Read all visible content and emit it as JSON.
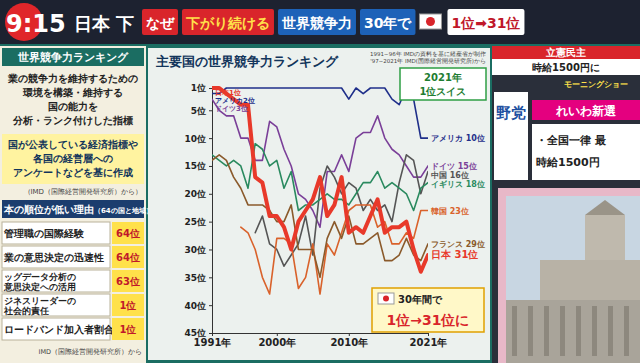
{
  "banner": {
    "clock": "9:15",
    "headline_prefix": "日本 下",
    "tags": [
      "なぜ",
      "下がり続ける",
      "世界競争力",
      "30年で"
    ],
    "result": "1位➡31位"
  },
  "sidebar": {
    "heading": "世界競争力ランキング",
    "description": [
      "業の競争力を維持するための",
      "環境を構築・維持する",
      "国の能力を",
      "分析・ランク付けした指標"
    ],
    "method": [
      "国が公表している経済指標や",
      "各国の経営層への",
      "アンケートなどを基に作成"
    ],
    "method_source": "（IMD（国際経営開発研究所）から）",
    "reasons_heading": "本の順位が低い理由",
    "reasons_note": "（64の国と地域）",
    "reasons": [
      {
        "item": [
          "管理職の国際経験"
        ],
        "rank": "64位"
      },
      {
        "item": [
          "業の意思決定の迅速性"
        ],
        "rank": "64位"
      },
      {
        "item": [
          "ッグデータ分析の",
          "意思決定への活用"
        ],
        "rank": "63位"
      },
      {
        "item": [
          "ジネスリーダーの",
          "社会的責任"
        ],
        "rank": "1位"
      },
      {
        "item": [
          "ロードバンド加入者割合"
        ],
        "rank": "1位"
      }
    ],
    "reasons_source": "IMD（国際経営開発研究所）から"
  },
  "side_panel": {
    "top_party": "立憲民主",
    "top_policy": "時給1500円に",
    "show": "モーニングショー",
    "party": "野党",
    "other_party": "れいわ新選",
    "policy": [
      "・全国一律 最",
      "時給1500円"
    ]
  },
  "chart_data": {
    "type": "line",
    "title": "主要国の世界競争力ランキング",
    "source": [
      "1991~96年 IMDの資料を基に経産省が制作",
      "'97~2021年 IMD(国際経営開発研究所)から"
    ],
    "x": [
      1991,
      1992,
      1993,
      1994,
      1995,
      1996,
      1997,
      1998,
      1999,
      2000,
      2001,
      2002,
      2003,
      2004,
      2005,
      2006,
      2007,
      2008,
      2009,
      2010,
      2011,
      2012,
      2013,
      2014,
      2015,
      2016,
      2017,
      2018,
      2019,
      2020,
      2021
    ],
    "xlim": [
      1991,
      2021
    ],
    "xticks": [
      {
        "value": 1991,
        "label": "1991年"
      },
      {
        "value": 2000,
        "label": "2000年"
      },
      {
        "value": 2010,
        "label": "2010年"
      },
      {
        "value": 2021,
        "label": "2021年"
      }
    ],
    "ylim": [
      1,
      45
    ],
    "yticks": [
      {
        "value": 1,
        "label": "1位"
      },
      {
        "value": 5,
        "label": "5位"
      },
      {
        "value": 10,
        "label": "10位"
      },
      {
        "value": 15,
        "label": "15位"
      },
      {
        "value": 20,
        "label": "20位"
      },
      {
        "value": 25,
        "label": "25位"
      },
      {
        "value": 30,
        "label": "30位"
      },
      {
        "value": 35,
        "label": "35位"
      },
      {
        "value": 40,
        "label": "40位"
      },
      {
        "value": 45,
        "label": "45位"
      }
    ],
    "grid": false,
    "series": [
      {
        "name": "アメリカ",
        "color": "#1f2f8a",
        "line_style": "solid",
        "values": [
          2,
          2,
          1,
          1,
          1,
          1,
          1,
          1,
          1,
          1,
          1,
          1,
          1,
          1,
          1,
          1,
          1,
          1,
          1,
          3,
          1,
          2,
          1,
          1,
          1,
          3,
          4,
          1,
          3,
          10,
          10
        ],
        "value_labels": [
          null,
          null,
          null,
          null,
          null,
          null,
          null,
          null,
          null,
          null,
          null,
          null,
          null,
          null,
          null,
          null,
          null,
          null,
          null,
          null,
          null,
          null,
          null,
          null,
          null,
          null,
          null,
          null,
          null,
          null,
          "10位"
        ]
      },
      {
        "name": "ドイツ",
        "color": "#7a3f98",
        "line_style": "solid",
        "values": [
          3,
          5,
          6,
          6,
          10,
          10,
          14,
          14,
          7,
          8,
          12,
          15,
          20,
          21,
          23,
          26,
          16,
          16,
          13,
          16,
          10,
          9,
          9,
          6,
          10,
          12,
          13,
          15,
          17,
          17,
          15
        ],
        "value_labels": [
          null,
          null,
          null,
          null,
          null,
          null,
          null,
          null,
          null,
          null,
          null,
          null,
          null,
          null,
          null,
          null,
          null,
          null,
          null,
          null,
          null,
          null,
          null,
          null,
          null,
          null,
          null,
          null,
          null,
          null,
          "15位"
        ]
      },
      {
        "name": "中国",
        "color": "#555555",
        "line_style": "solid",
        "values": [
          null,
          null,
          null,
          null,
          null,
          null,
          27,
          24,
          29,
          30,
          33,
          31,
          29,
          24,
          31,
          19,
          15,
          17,
          20,
          18,
          19,
          23,
          21,
          23,
          22,
          25,
          18,
          13,
          14,
          20,
          16
        ],
        "value_labels": [
          null,
          null,
          null,
          null,
          null,
          null,
          null,
          null,
          null,
          null,
          null,
          null,
          null,
          null,
          null,
          null,
          null,
          null,
          null,
          null,
          null,
          null,
          null,
          null,
          null,
          null,
          null,
          null,
          null,
          null,
          "16位"
        ]
      },
      {
        "name": "イギリス",
        "color": "#2a8a5f",
        "line_style": "solid",
        "values": [
          13,
          14,
          15,
          14,
          15,
          19,
          11,
          12,
          15,
          14,
          19,
          16,
          23,
          22,
          22,
          21,
          20,
          21,
          21,
          22,
          20,
          18,
          18,
          16,
          19,
          18,
          19,
          20,
          23,
          19,
          18
        ],
        "value_labels": [
          null,
          null,
          null,
          null,
          null,
          null,
          null,
          null,
          null,
          null,
          null,
          null,
          null,
          null,
          null,
          null,
          null,
          null,
          null,
          null,
          null,
          null,
          null,
          null,
          null,
          null,
          null,
          null,
          null,
          null,
          "18位"
        ]
      },
      {
        "name": "韓国",
        "color": "#d9622b",
        "line_style": "solid",
        "values": [
          null,
          null,
          null,
          null,
          26,
          27,
          30,
          35,
          38,
          28,
          28,
          29,
          37,
          35,
          29,
          38,
          29,
          31,
          27,
          23,
          22,
          22,
          22,
          26,
          25,
          29,
          29,
          27,
          28,
          23,
          23
        ],
        "value_labels": [
          null,
          null,
          null,
          null,
          null,
          null,
          null,
          null,
          null,
          null,
          null,
          null,
          null,
          null,
          null,
          null,
          null,
          null,
          null,
          null,
          null,
          null,
          null,
          null,
          null,
          null,
          null,
          null,
          null,
          null,
          "23位"
        ]
      },
      {
        "name": "フランス",
        "color": "#8a5a2b",
        "line_style": "solid",
        "values": [
          14,
          13,
          14,
          17,
          19,
          22,
          22,
          22,
          23,
          25,
          25,
          22,
          30,
          30,
          30,
          35,
          28,
          25,
          28,
          24,
          29,
          29,
          28,
          27,
          32,
          32,
          31,
          28,
          31,
          32,
          29
        ],
        "value_labels": [
          null,
          null,
          null,
          null,
          null,
          null,
          null,
          null,
          null,
          null,
          null,
          null,
          null,
          null,
          null,
          null,
          null,
          null,
          null,
          null,
          null,
          null,
          null,
          null,
          null,
          null,
          null,
          null,
          null,
          null,
          "29位"
        ]
      },
      {
        "name": "日本",
        "color": "#e8392a",
        "line_style": "thick",
        "values": [
          1,
          1,
          2,
          3,
          4,
          4,
          17,
          18,
          24,
          24,
          26,
          30,
          25,
          23,
          21,
          17,
          24,
          22,
          17,
          27,
          26,
          27,
          24,
          21,
          27,
          26,
          26,
          25,
          30,
          34,
          31
        ],
        "value_labels": [
          null,
          null,
          null,
          null,
          null,
          null,
          null,
          null,
          null,
          null,
          null,
          null,
          null,
          null,
          null,
          null,
          null,
          null,
          null,
          null,
          null,
          null,
          null,
          null,
          null,
          null,
          null,
          null,
          null,
          null,
          "31位"
        ]
      }
    ],
    "annotations": {
      "start": [
        "日本1位",
        "アメリカ2位",
        "ドイツ3位"
      ],
      "winner": [
        "2021年",
        "1位スイス"
      ],
      "callout": [
        "30年間で",
        "1位→31位に"
      ]
    }
  }
}
